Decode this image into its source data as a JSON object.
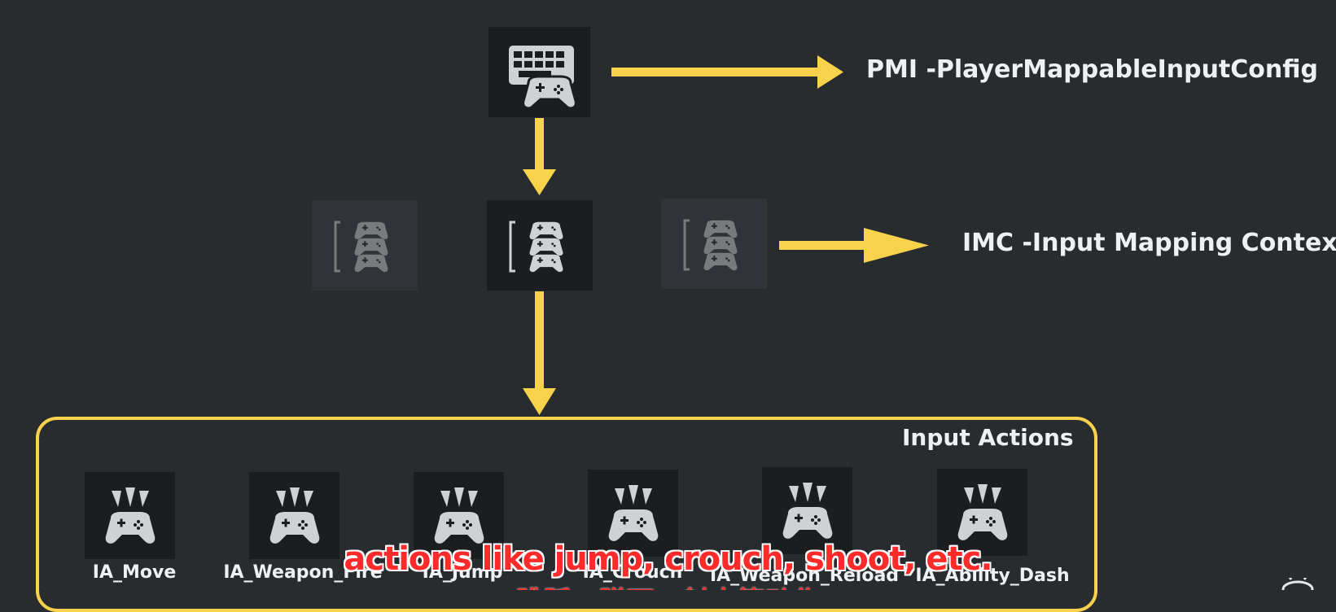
{
  "pmi": {
    "label": "PMI -PlayerMappableInputConfig",
    "icon": "keyboard-gamepad-icon"
  },
  "imc": {
    "label": "IMC -Input Mapping Context",
    "icon": "mapping-context-icon"
  },
  "input_actions": {
    "title": "Input Actions",
    "icon": "input-action-gamepad-icon",
    "items": [
      {
        "label": "IA_Move"
      },
      {
        "label": "IA_Weapon_Fire"
      },
      {
        "label": "IA_Jump"
      },
      {
        "label": "IA_Crouch"
      },
      {
        "label": "IA_Weapon_Reload"
      },
      {
        "label": "IA_Ability_Dash"
      }
    ]
  },
  "subtitle": {
    "line1": "actions like jump, crouch, shoot, etc.",
    "line2": "跳跃、蹲下、射击等动作"
  },
  "colors": {
    "background": "#282c2f",
    "accent": "#f7d24a",
    "tile": "#1b1d1f",
    "text": "#eef0f1",
    "subtitle": "#ff2a2a"
  }
}
